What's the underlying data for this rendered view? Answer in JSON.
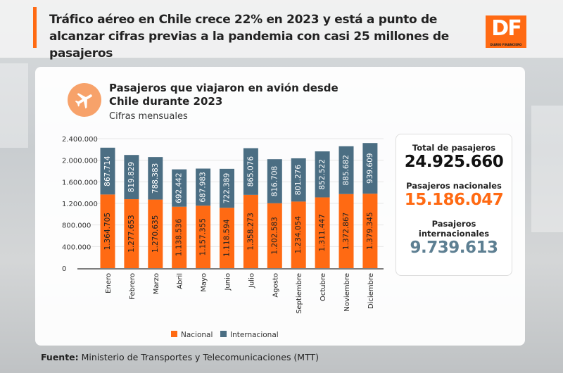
{
  "header": {
    "title": "Tráfico aéreo en Chile crece 22% en 2023 y está a punto de alcanzar cifras previas a la pandemia con casi 25 millones de pasajeros",
    "logo": "DF",
    "logo_sub": "DIARIO FINANCIERO"
  },
  "card": {
    "title": "Pasajeros que viajaron en avión desde Chile durante 2023",
    "subtitle": "Cifras mensuales",
    "icon": "airplane-icon"
  },
  "stats": {
    "total_label": "Total de pasajeros",
    "total_value": "24.925.660",
    "nac_label": "Pasajeros nacionales",
    "nac_value": "15.186.047",
    "int_label": "Pasajeros internacionales",
    "int_value": "9.739.613"
  },
  "footer": {
    "label": "Fuente:",
    "text": "Ministerio de Transportes y Telecomunicaciones (MTT)"
  },
  "colors": {
    "nacional": "#ff6a13",
    "internacional": "#4b6e83",
    "accent": "#ff6a13"
  },
  "chart_data": {
    "type": "bar",
    "stacked": true,
    "title": "Pasajeros que viajaron en avión desde Chile durante 2023",
    "categories": [
      "Enero",
      "Febrero",
      "Marzo",
      "Abril",
      "Mayo",
      "Junio",
      "Julio",
      "Agosto",
      "Septiembre",
      "Octubre",
      "Noviembre",
      "Diciembre"
    ],
    "series": [
      {
        "name": "Nacional",
        "values": [
          1364705,
          1277653,
          1270635,
          1138536,
          1157355,
          1118594,
          1358273,
          1202583,
          1234054,
          1311447,
          1372867,
          1379345
        ],
        "labels": [
          "1.364.705",
          "1.277.653",
          "1.270.635",
          "1.138.536",
          "1.157.355",
          "1.118.594",
          "1.358.273",
          "1.202.583",
          "1.234.054",
          "1.311.447",
          "1.372.867",
          "1.379.345"
        ]
      },
      {
        "name": "Internacional",
        "values": [
          867714,
          819829,
          788383,
          692442,
          687983,
          722389,
          865076,
          816708,
          801276,
          852522,
          885682,
          939609
        ],
        "labels": [
          "867.714",
          "819.829",
          "788.383",
          "692.442",
          "687.983",
          "722.389",
          "865.076",
          "816.708",
          "801.276",
          "852.522",
          "885.682",
          "939.609"
        ]
      }
    ],
    "yticks": [
      0,
      400000,
      800000,
      1200000,
      1600000,
      2000000,
      2400000
    ],
    "ytick_labels": [
      "0",
      "400.000",
      "800.000",
      "1.200.000",
      "1.600.000",
      "2.000.000",
      "2.400.000"
    ],
    "ylim": [
      0,
      2400000
    ],
    "grid": true,
    "legend": "bottom"
  }
}
